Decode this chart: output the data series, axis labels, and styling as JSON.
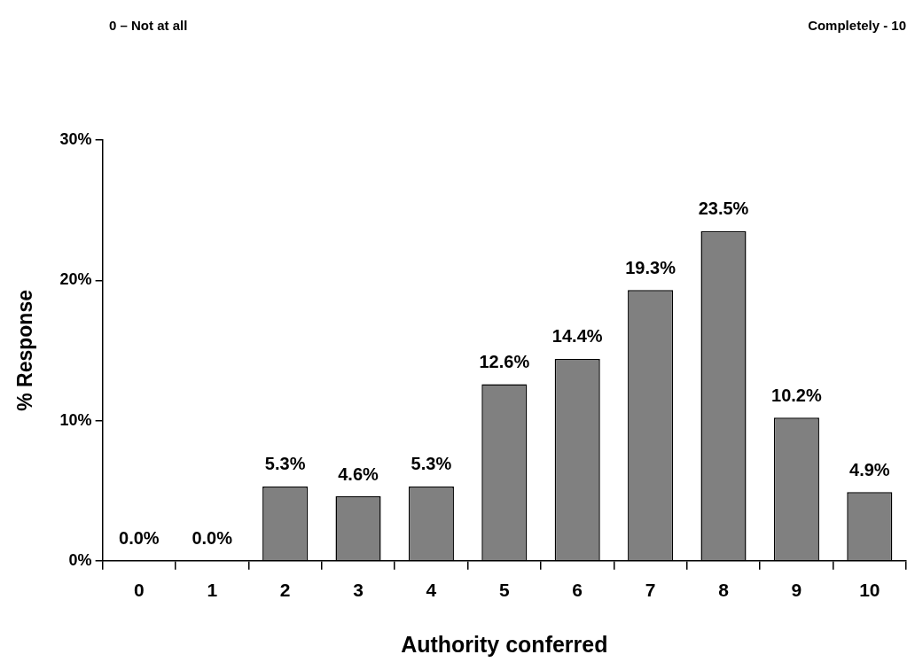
{
  "chart_data": {
    "type": "bar",
    "xlabel": "Authority conferred",
    "ylabel": "% Response",
    "annotations": [
      "0 – Not at all",
      "Completely - 10"
    ],
    "categories": [
      "0",
      "1",
      "2",
      "3",
      "4",
      "5",
      "6",
      "7",
      "8",
      "9",
      "10"
    ],
    "values": [
      0,
      0,
      5.3,
      4.6,
      5.3,
      12.6,
      14.4,
      19.3,
      23.5,
      10.2,
      4.9
    ],
    "value_labels": [
      "0.0%",
      "0.0%",
      "5.3%",
      "4.6%",
      "5.3%",
      "12.6%",
      "14.4%",
      "19.3%",
      "23.5%",
      "10.2%",
      "4.9%"
    ],
    "color": "#808080",
    "ylim": [
      0,
      30
    ],
    "yticks": [
      {
        "value": 0,
        "label": "0%"
      },
      {
        "value": 10,
        "label": "10%"
      },
      {
        "value": 20,
        "label": "20%"
      },
      {
        "value": 30,
        "label": "30%"
      }
    ],
    "grid": false,
    "legend": false
  }
}
